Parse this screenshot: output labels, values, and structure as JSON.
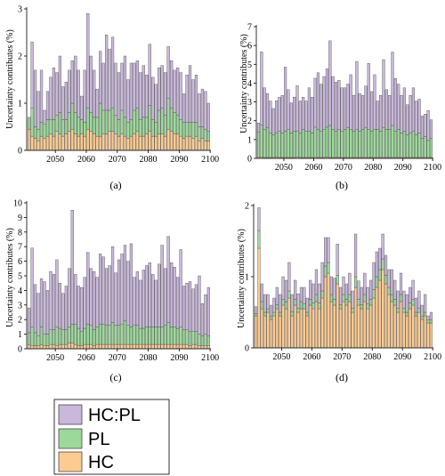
{
  "chart_data": [
    {
      "type": "bar",
      "stacked": true,
      "panel_label": "(a)",
      "ylabel": "Uncertainty contributes (%)",
      "ylim": [
        0,
        3
      ],
      "yticks": [
        0,
        1,
        2,
        3
      ],
      "xticks": [
        2050,
        2060,
        2070,
        2080,
        2090,
        2100
      ],
      "x_start": 2041,
      "x_end": 2099,
      "series": [
        {
          "name": "HC",
          "color": "#FCCB92",
          "values": [
            0.45,
            0.3,
            0.25,
            0.2,
            0.3,
            0.25,
            0.3,
            0.35,
            0.3,
            0.4,
            0.35,
            0.3,
            0.35,
            0.4,
            0.45,
            0.35,
            0.3,
            0.35,
            0.3,
            0.45,
            0.4,
            0.35,
            0.3,
            0.3,
            0.35,
            0.35,
            0.4,
            0.4,
            0.35,
            0.3,
            0.35,
            0.3,
            0.25,
            0.3,
            0.35,
            0.4,
            0.3,
            0.3,
            0.35,
            0.4,
            0.3,
            0.3,
            0.35,
            0.35,
            0.3,
            0.45,
            0.4,
            0.35,
            0.35,
            0.3,
            0.25,
            0.3,
            0.3,
            0.25,
            0.3,
            0.2,
            0.25,
            0.2,
            0.2
          ]
        },
        {
          "name": "PL",
          "color": "#9DD89B",
          "values": [
            0.25,
            0.6,
            0.25,
            0.25,
            0.3,
            0.3,
            0.35,
            0.3,
            0.35,
            0.35,
            0.45,
            0.35,
            0.3,
            0.4,
            0.55,
            0.45,
            0.4,
            0.3,
            0.3,
            0.45,
            0.4,
            0.35,
            0.4,
            0.7,
            0.5,
            0.5,
            0.45,
            0.5,
            0.4,
            0.35,
            0.5,
            0.4,
            0.35,
            0.35,
            0.5,
            0.5,
            0.35,
            0.4,
            0.35,
            0.55,
            0.35,
            0.3,
            0.5,
            0.55,
            0.45,
            0.65,
            0.5,
            0.45,
            0.4,
            0.35,
            0.35,
            0.3,
            0.3,
            0.35,
            0.3,
            0.3,
            0.25,
            0.25,
            0.2
          ]
        },
        {
          "name": "HC:PL",
          "color": "#C9B8DB",
          "values": [
            0.0,
            1.4,
            1.2,
            0.8,
            1.1,
            0.3,
            0.6,
            0.9,
            1.1,
            0.9,
            1.2,
            0.7,
            0.8,
            0.9,
            0.9,
            1.2,
            1.0,
            0.5,
            1.1,
            2.0,
            1.2,
            1.0,
            0.6,
            1.1,
            1.0,
            1.6,
            1.3,
            1.5,
            1.1,
            1.0,
            1.0,
            1.3,
            0.9,
            1.2,
            1.0,
            1.0,
            1.0,
            1.1,
            0.9,
            1.3,
            0.9,
            0.8,
            0.9,
            0.9,
            0.9,
            1.1,
            1.0,
            0.9,
            1.0,
            1.0,
            0.6,
            1.0,
            1.2,
            0.9,
            1.0,
            0.7,
            0.8,
            0.8,
            0.6
          ]
        }
      ]
    },
    {
      "type": "bar",
      "stacked": true,
      "panel_label": "(b)",
      "ylabel": "Uncertainty contributes (%)",
      "ylim": [
        0,
        7
      ],
      "yticks": [
        0,
        1,
        2,
        3,
        4,
        5,
        6,
        7
      ],
      "xticks": [
        2050,
        2060,
        2070,
        2080,
        2090,
        2100
      ],
      "x_start": 2041,
      "x_end": 2099,
      "series": [
        {
          "name": "HC",
          "color": "#FCCB92",
          "values": [
            0.08,
            0.06,
            0.05,
            0.05,
            0.05,
            0.05,
            0.06,
            0.05,
            0.05,
            0.05,
            0.05,
            0.05,
            0.05,
            0.06,
            0.05,
            0.05,
            0.05,
            0.05,
            0.05,
            0.06,
            0.05,
            0.05,
            0.05,
            0.06,
            0.05,
            0.05,
            0.05,
            0.05,
            0.05,
            0.05,
            0.05,
            0.05,
            0.05,
            0.05,
            0.05,
            0.05,
            0.05,
            0.05,
            0.05,
            0.05,
            0.05,
            0.05,
            0.05,
            0.05,
            0.05,
            0.05,
            0.05,
            0.05,
            0.05,
            0.05,
            0.05,
            0.05,
            0.05,
            0.05,
            0.05,
            0.05,
            0.05,
            0.05,
            0.05
          ]
        },
        {
          "name": "PL",
          "color": "#9DD89B",
          "values": [
            1.3,
            1.7,
            1.5,
            1.6,
            1.3,
            1.2,
            1.3,
            1.4,
            1.3,
            1.4,
            1.5,
            1.3,
            1.4,
            1.4,
            1.3,
            1.5,
            1.4,
            1.4,
            1.3,
            1.6,
            1.5,
            1.4,
            1.5,
            1.6,
            1.7,
            1.5,
            1.4,
            1.5,
            1.4,
            1.5,
            1.6,
            1.5,
            1.4,
            1.5,
            1.4,
            1.5,
            1.6,
            1.5,
            1.4,
            1.5,
            1.5,
            1.4,
            1.6,
            1.5,
            1.5,
            1.7,
            1.4,
            1.5,
            1.3,
            1.4,
            1.2,
            1.3,
            1.4,
            1.2,
            1.3,
            1.0,
            1.1,
            0.9,
            1.0
          ]
        },
        {
          "name": "HC:PL",
          "color": "#C9B8DB",
          "values": [
            0.5,
            3.9,
            2.2,
            1.8,
            1.7,
            1.4,
            1.7,
            1.8,
            2.0,
            3.4,
            2.1,
            1.6,
            1.8,
            2.4,
            1.7,
            1.7,
            1.6,
            2.3,
            1.9,
            2.6,
            3.0,
            2.5,
            2.8,
            3.1,
            4.5,
            2.8,
            2.6,
            2.6,
            2.3,
            2.2,
            2.3,
            2.9,
            1.9,
            3.6,
            2.0,
            1.8,
            2.2,
            3.5,
            2.1,
            2.9,
            1.5,
            1.9,
            3.6,
            2.1,
            1.8,
            3.9,
            2.8,
            2.4,
            2.0,
            2.3,
            1.6,
            2.0,
            2.3,
            1.8,
            1.8,
            1.2,
            1.2,
            1.6,
            1.0
          ]
        }
      ]
    },
    {
      "type": "bar",
      "stacked": true,
      "panel_label": "(c)",
      "ylabel": "Uncertainty contributes (%)",
      "ylim": [
        0,
        10
      ],
      "yticks": [
        0,
        1,
        2,
        3,
        4,
        5,
        6,
        7,
        8,
        9,
        10
      ],
      "xticks": [
        2050,
        2060,
        2070,
        2080,
        2090,
        2100
      ],
      "x_start": 2041,
      "x_end": 2099,
      "series": [
        {
          "name": "HC",
          "color": "#FCCB92",
          "values": [
            0.3,
            0.2,
            0.2,
            0.2,
            0.3,
            0.2,
            0.2,
            0.3,
            0.3,
            0.2,
            0.3,
            0.3,
            0.3,
            0.4,
            0.4,
            0.3,
            0.2,
            0.2,
            0.3,
            0.3,
            0.3,
            0.2,
            0.3,
            0.3,
            0.3,
            0.3,
            0.3,
            0.3,
            0.3,
            0.3,
            0.3,
            0.3,
            0.3,
            0.3,
            0.3,
            0.3,
            0.3,
            0.3,
            0.3,
            0.3,
            0.3,
            0.3,
            0.3,
            0.3,
            0.3,
            0.3,
            0.3,
            0.3,
            0.3,
            0.3,
            0.3,
            0.3,
            0.2,
            0.3,
            0.3,
            0.2,
            0.2,
            0.2,
            0.2
          ]
        },
        {
          "name": "PL",
          "color": "#9DD89B",
          "values": [
            0.8,
            1.3,
            0.9,
            0.7,
            1.2,
            0.8,
            0.8,
            1.0,
            1.0,
            1.3,
            1.1,
            1.0,
            1.0,
            1.1,
            1.3,
            1.4,
            1.2,
            1.0,
            1.1,
            1.4,
            1.3,
            1.1,
            1.2,
            1.4,
            1.4,
            1.3,
            1.3,
            1.5,
            1.3,
            1.3,
            1.4,
            1.6,
            1.3,
            1.2,
            1.3,
            1.3,
            1.1,
            1.1,
            1.2,
            1.2,
            1.2,
            1.2,
            1.2,
            1.2,
            1.3,
            1.5,
            1.2,
            1.2,
            1.1,
            1.2,
            1.0,
            1.0,
            1.0,
            0.9,
            0.9,
            0.8,
            0.7,
            0.8,
            0.7
          ]
        },
        {
          "name": "HC:PL",
          "color": "#C9B8DB",
          "values": [
            1.7,
            5.4,
            3.3,
            2.9,
            3.3,
            3.6,
            3.0,
            4.0,
            3.8,
            4.6,
            3.1,
            2.5,
            3.0,
            4.0,
            7.8,
            3.4,
            2.9,
            3.0,
            3.5,
            4.9,
            3.9,
            4.0,
            3.4,
            4.8,
            4.6,
            3.9,
            4.1,
            5.2,
            3.6,
            4.5,
            4.8,
            5.2,
            4.4,
            5.7,
            3.3,
            3.7,
            3.3,
            4.0,
            4.2,
            4.4,
            3.6,
            3.2,
            4.3,
            5.6,
            3.9,
            5.9,
            4.4,
            4.1,
            3.5,
            5.3,
            3.0,
            3.2,
            3.4,
            2.9,
            3.2,
            4.0,
            2.2,
            2.7,
            3.3
          ]
        }
      ]
    },
    {
      "type": "bar",
      "stacked": true,
      "panel_label": "(d)",
      "ylabel": "Uncertainty contributes (%)",
      "ylim": [
        0,
        2
      ],
      "yticks": [
        0,
        1,
        2
      ],
      "xticks": [
        2050,
        2060,
        2070,
        2080,
        2090,
        2100
      ],
      "x_start": 2041,
      "x_end": 2099,
      "series": [
        {
          "name": "HC",
          "color": "#FCCB92",
          "values": [
            0.45,
            1.4,
            0.55,
            0.45,
            0.5,
            0.4,
            0.45,
            0.55,
            0.45,
            0.6,
            0.55,
            0.7,
            0.45,
            0.6,
            0.5,
            0.55,
            0.55,
            0.45,
            0.6,
            0.55,
            0.65,
            0.55,
            0.7,
            1.0,
            1.05,
            0.65,
            0.6,
            0.9,
            0.55,
            0.65,
            0.6,
            0.65,
            0.5,
            0.85,
            0.6,
            0.55,
            0.65,
            0.55,
            0.6,
            0.7,
            0.85,
            0.95,
            1.1,
            0.9,
            0.75,
            0.65,
            0.6,
            0.5,
            0.65,
            0.5,
            0.45,
            0.55,
            0.6,
            0.45,
            0.5,
            0.4,
            0.45,
            0.35,
            0.35
          ]
        },
        {
          "name": "PL",
          "color": "#9DD89B",
          "values": [
            0.03,
            0.25,
            0.1,
            0.05,
            0.05,
            0.04,
            0.05,
            0.06,
            0.05,
            0.08,
            0.1,
            0.1,
            0.06,
            0.08,
            0.06,
            0.1,
            0.07,
            0.05,
            0.08,
            0.08,
            0.1,
            0.08,
            0.1,
            0.15,
            0.15,
            0.1,
            0.08,
            0.12,
            0.06,
            0.1,
            0.08,
            0.1,
            0.06,
            0.15,
            0.08,
            0.06,
            0.1,
            0.07,
            0.08,
            0.12,
            0.15,
            0.15,
            0.15,
            0.12,
            0.1,
            0.1,
            0.08,
            0.06,
            0.1,
            0.06,
            0.05,
            0.08,
            0.08,
            0.05,
            0.06,
            0.04,
            0.05,
            0.04,
            0.04
          ]
        },
        {
          "name": "HC:PL",
          "color": "#C9B8DB",
          "values": [
            0.1,
            0.32,
            0.25,
            0.25,
            0.2,
            0.16,
            0.2,
            0.24,
            0.25,
            0.32,
            0.3,
            0.4,
            0.24,
            0.27,
            0.2,
            0.2,
            0.23,
            0.2,
            0.27,
            0.27,
            0.35,
            0.27,
            0.4,
            0.4,
            0.35,
            0.25,
            0.3,
            0.44,
            0.24,
            0.25,
            0.22,
            0.3,
            0.24,
            0.6,
            0.26,
            0.24,
            0.3,
            0.23,
            0.27,
            0.38,
            0.35,
            0.3,
            0.35,
            0.28,
            0.25,
            0.35,
            0.27,
            0.24,
            0.3,
            0.24,
            0.25,
            0.22,
            0.27,
            0.2,
            0.24,
            0.16,
            0.25,
            0.06,
            0.11
          ]
        }
      ]
    }
  ],
  "legend": {
    "items": [
      {
        "label": "HC:PL",
        "color": "#C9B8DB"
      },
      {
        "label": "PL",
        "color": "#9DD89B"
      },
      {
        "label": "HC",
        "color": "#FCCB92"
      }
    ]
  }
}
